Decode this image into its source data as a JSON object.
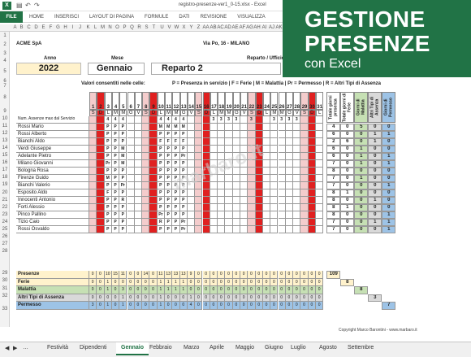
{
  "window": {
    "doc_title": "registro-presenze-ver1_0-15.xlsx - Excel"
  },
  "ribbon": {
    "file": "FILE",
    "tabs": [
      "HOME",
      "INSERISCI",
      "LAYOUT DI PAGINA",
      "FORMULE",
      "DATI",
      "REVISIONE",
      "VISUALIZZA"
    ]
  },
  "banner": {
    "line1": "GESTIONE",
    "line2": "PRESENZE",
    "line3": "con Excel"
  },
  "columns": [
    "A",
    "B",
    "C",
    "D",
    "E",
    "F",
    "G",
    "H",
    "I",
    "J",
    "K",
    "L",
    "M",
    "N",
    "O",
    "P",
    "Q",
    "R",
    "S",
    "T",
    "U",
    "V",
    "W",
    "X",
    "Y",
    "Z",
    "AA",
    "AB",
    "AC",
    "AD",
    "AE",
    "AF",
    "AG",
    "AH",
    "AI",
    "AJ",
    "AK",
    "AL",
    "AM",
    "AN",
    "AO"
  ],
  "header": {
    "company": "ACME SpA",
    "address": "Via Po, 16 - MILANO",
    "anno_label": "Anno",
    "anno": "2022",
    "mese_label": "Mese",
    "mese": "Gennaio",
    "reparto_label": "Reparto / Ufficio",
    "reparto": "Reparto 2",
    "legend": "Valori consentiti nelle celle:",
    "legend_values": "P = Presenza in servizio | F = Ferie | M = Malattia | Pr = Permesso | R = Altri Tipi di Assenza"
  },
  "grid": {
    "days": [
      1,
      2,
      3,
      4,
      5,
      6,
      7,
      8,
      9,
      10,
      11,
      12,
      13,
      14,
      15,
      16,
      17,
      18,
      19,
      20,
      21,
      22,
      23,
      24,
      25,
      26,
      27,
      28,
      29,
      30,
      31
    ],
    "weekdays": [
      "S",
      "D",
      "L",
      "M",
      "M",
      "G",
      "V",
      "S",
      "D",
      "L",
      "M",
      "M",
      "G",
      "V",
      "S",
      "D",
      "L",
      "M",
      "M",
      "G",
      "V",
      "S",
      "D",
      "L",
      "M",
      "M",
      "G",
      "V",
      "S",
      "D",
      "L"
    ],
    "max_row_label": "Num. Assenze max dal Servizio",
    "max_row": [
      "",
      "",
      "4",
      "4",
      "4",
      "",
      "",
      "",
      "",
      "4",
      "4",
      "4",
      "4",
      "",
      "",
      "",
      "3",
      "3",
      "3",
      "3",
      "",
      "3",
      "",
      "",
      "3",
      "3",
      "3",
      "3",
      "",
      "",
      ""
    ],
    "summary_headers": [
      "Totale giorni presenza",
      "Totale giorni di Ferie",
      "Giorni di Malattia",
      "Altri Tipi di Assenza",
      "Giorni di Permesso"
    ],
    "employees": [
      {
        "name": "Rossi Mario",
        "cells": [
          "",
          "",
          "P",
          "P",
          "P",
          "",
          "",
          "",
          "",
          "M",
          "M",
          "M",
          "M",
          "",
          "",
          "",
          "",
          "",
          "",
          "",
          "",
          "",
          "",
          "",
          "",
          "",
          "",
          "",
          "",
          "",
          ""
        ],
        "totals": [
          "4",
          "0",
          "5",
          "0",
          "0"
        ]
      },
      {
        "name": "Rossi Alberto",
        "cells": [
          "",
          "",
          "P",
          "P",
          "P",
          "",
          "",
          "",
          "",
          "P",
          "P",
          "P",
          "P",
          "",
          "",
          "",
          "",
          "",
          "",
          "",
          "",
          "",
          "",
          "",
          "",
          "",
          "",
          "",
          "",
          "",
          ""
        ],
        "totals": [
          "6",
          "0",
          "0",
          "1",
          "1"
        ]
      },
      {
        "name": "Bianchi Aldo",
        "cells": [
          "",
          "",
          "P",
          "P",
          "P",
          "",
          "",
          "",
          "",
          "F",
          "F",
          "F",
          "F",
          "",
          "",
          "",
          "",
          "",
          "",
          "",
          "",
          "",
          "",
          "",
          "",
          "",
          "",
          "",
          "",
          "",
          ""
        ],
        "totals": [
          "2",
          "6",
          "0",
          "1",
          "0"
        ]
      },
      {
        "name": "Verdi Giuseppe",
        "cells": [
          "",
          "",
          "P",
          "P",
          "M",
          "",
          "",
          "",
          "",
          "P",
          "P",
          "P",
          "P",
          "",
          "",
          "",
          "",
          "",
          "",
          "",
          "",
          "",
          "",
          "",
          "",
          "",
          "",
          "",
          "",
          "",
          ""
        ],
        "totals": [
          "6",
          "0",
          "1",
          "0",
          "0"
        ]
      },
      {
        "name": "Adelante Pietro",
        "cells": [
          "",
          "",
          "P",
          "P",
          "M",
          "",
          "",
          "",
          "",
          "P",
          "P",
          "P",
          "Pr",
          "",
          "",
          "",
          "",
          "",
          "",
          "",
          "",
          "",
          "",
          "",
          "",
          "",
          "",
          "",
          "",
          "",
          ""
        ],
        "totals": [
          "6",
          "0",
          "1",
          "0",
          "1"
        ]
      },
      {
        "name": "Milano Giovanni",
        "cells": [
          "",
          "",
          "Pr",
          "P",
          "M",
          "",
          "",
          "",
          "",
          "P",
          "P",
          "P",
          "P",
          "",
          "",
          "",
          "",
          "",
          "",
          "",
          "",
          "",
          "",
          "",
          "",
          "",
          "",
          "",
          "",
          "",
          ""
        ],
        "totals": [
          "7",
          "0",
          "1",
          "0",
          "1"
        ]
      },
      {
        "name": "Bologna Rosa",
        "cells": [
          "",
          "",
          "P",
          "P",
          "P",
          "",
          "",
          "",
          "",
          "P",
          "P",
          "P",
          "P",
          "",
          "",
          "",
          "",
          "",
          "",
          "",
          "",
          "",
          "",
          "",
          "",
          "",
          "",
          "",
          "",
          "",
          ""
        ],
        "totals": [
          "8",
          "0",
          "0",
          "0",
          "0"
        ]
      },
      {
        "name": "Firenze Guido",
        "cells": [
          "",
          "",
          "M",
          "P",
          "P",
          "",
          "",
          "",
          "",
          "P",
          "P",
          "P",
          "P",
          "",
          "",
          "",
          "",
          "",
          "",
          "",
          "",
          "",
          "",
          "",
          "",
          "",
          "",
          "",
          "",
          "",
          ""
        ],
        "totals": [
          "7",
          "0",
          "1",
          "0",
          "0"
        ]
      },
      {
        "name": "Bianchi Valerio",
        "cells": [
          "",
          "",
          "P",
          "P",
          "Pr",
          "",
          "",
          "",
          "",
          "P",
          "P",
          "P",
          "P",
          "",
          "",
          "",
          "",
          "",
          "",
          "",
          "",
          "",
          "",
          "",
          "",
          "",
          "",
          "",
          "",
          "",
          ""
        ],
        "totals": [
          "7",
          "0",
          "0",
          "0",
          "1"
        ]
      },
      {
        "name": "Esposito Aldo",
        "cells": [
          "",
          "",
          "F",
          "P",
          "P",
          "",
          "",
          "",
          "",
          "P",
          "P",
          "P",
          "P",
          "",
          "",
          "",
          "",
          "",
          "",
          "",
          "",
          "",
          "",
          "",
          "",
          "",
          "",
          "",
          "",
          "",
          ""
        ],
        "totals": [
          "8",
          "1",
          "0",
          "0",
          "0"
        ]
      },
      {
        "name": "Innocenti Antonio",
        "cells": [
          "",
          "",
          "P",
          "P",
          "R",
          "",
          "",
          "",
          "",
          "P",
          "P",
          "P",
          "P",
          "",
          "",
          "",
          "",
          "",
          "",
          "",
          "",
          "",
          "",
          "",
          "",
          "",
          "",
          "",
          "",
          "",
          ""
        ],
        "totals": [
          "8",
          "0",
          "0",
          "1",
          "0"
        ]
      },
      {
        "name": "Forti Alessio",
        "cells": [
          "",
          "",
          "P",
          "P",
          "P",
          "",
          "",
          "",
          "",
          "P",
          "P",
          "P",
          "P",
          "",
          "",
          "",
          "",
          "",
          "",
          "",
          "",
          "",
          "",
          "",
          "",
          "",
          "",
          "",
          "",
          "",
          ""
        ],
        "totals": [
          "8",
          "1",
          "0",
          "0",
          "0"
        ]
      },
      {
        "name": "Pinco Pallino",
        "cells": [
          "",
          "",
          "P",
          "P",
          "P",
          "",
          "",
          "",
          "",
          "Pr",
          "P",
          "P",
          "P",
          "",
          "",
          "",
          "",
          "",
          "",
          "",
          "",
          "",
          "",
          "",
          "",
          "",
          "",
          "",
          "",
          "",
          ""
        ],
        "totals": [
          "8",
          "0",
          "0",
          "0",
          "1"
        ]
      },
      {
        "name": "Tizio Caio",
        "cells": [
          "",
          "",
          "P",
          "P",
          "P",
          "",
          "",
          "",
          "",
          "R",
          "P",
          "P",
          "Pr",
          "",
          "",
          "",
          "",
          "",
          "",
          "",
          "",
          "",
          "",
          "",
          "",
          "",
          "",
          "",
          "",
          "",
          ""
        ],
        "totals": [
          "7",
          "0",
          "0",
          "1",
          "1"
        ]
      },
      {
        "name": "Rossi Osvaldo",
        "cells": [
          "",
          "",
          "P",
          "P",
          "P",
          "",
          "",
          "",
          "",
          "P",
          "P",
          "P",
          "Pr",
          "",
          "",
          "",
          "",
          "",
          "",
          "",
          "",
          "",
          "",
          "",
          "",
          "",
          "",
          "",
          "",
          "",
          ""
        ],
        "totals": [
          "7",
          "0",
          "0",
          "0",
          "1"
        ]
      }
    ],
    "summary_rows": [
      {
        "name": "Presenze",
        "values": [
          "0",
          "0",
          "10",
          "15",
          "11",
          "0",
          "0",
          "14",
          "0",
          "11",
          "13",
          "13",
          "13",
          "9",
          "0",
          "0",
          "0",
          "0",
          "0",
          "0",
          "0",
          "0",
          "0",
          "0",
          "0",
          "0",
          "0",
          "0",
          "0",
          "0",
          "0"
        ],
        "total": "109",
        "bg": "#fff2cc"
      },
      {
        "name": "Ferie",
        "values": [
          "0",
          "0",
          "1",
          "0",
          "0",
          "0",
          "0",
          "0",
          "0",
          "1",
          "1",
          "1",
          "1",
          "0",
          "0",
          "0",
          "0",
          "0",
          "0",
          "0",
          "0",
          "0",
          "0",
          "0",
          "0",
          "0",
          "0",
          "0",
          "0",
          "0",
          "0"
        ],
        "total": "8",
        "bg": "#fff2cc"
      },
      {
        "name": "Malattia",
        "values": [
          "0",
          "0",
          "1",
          "0",
          "3",
          "0",
          "0",
          "0",
          "0",
          "1",
          "1",
          "1",
          "1",
          "0",
          "0",
          "0",
          "0",
          "0",
          "0",
          "0",
          "0",
          "0",
          "0",
          "0",
          "0",
          "0",
          "0",
          "0",
          "0",
          "0",
          "0"
        ],
        "total": "8",
        "bg": "#c6e0b4"
      },
      {
        "name": "Altri Tipi di Assenza",
        "values": [
          "0",
          "0",
          "0",
          "0",
          "1",
          "0",
          "0",
          "0",
          "0",
          "1",
          "0",
          "0",
          "0",
          "1",
          "0",
          "0",
          "0",
          "0",
          "0",
          "0",
          "0",
          "0",
          "0",
          "0",
          "0",
          "0",
          "0",
          "0",
          "0",
          "0",
          "0"
        ],
        "total": "3",
        "bg": "#d9d9d9"
      },
      {
        "name": "Permesso",
        "values": [
          "3",
          "0",
          "1",
          "0",
          "1",
          "0",
          "0",
          "0",
          "0",
          "1",
          "0",
          "0",
          "0",
          "4",
          "0",
          "0",
          "0",
          "0",
          "0",
          "0",
          "0",
          "0",
          "0",
          "0",
          "0",
          "0",
          "0",
          "0",
          "0",
          "0",
          "0"
        ],
        "total": "7",
        "bg": "#9dc3e6"
      }
    ],
    "copyright": "Copyright Marco Barontini - www.marbaro.it"
  },
  "watermark": "marbaro.it",
  "tabs": {
    "active": "Gennaio",
    "list": [
      "Festività",
      "Dipendenti",
      "Gennaio",
      "Febbraio",
      "Marzo",
      "Aprile",
      "Maggio",
      "Giugno",
      "Luglio",
      "Agosto",
      "Settembre"
    ]
  },
  "colors": {
    "excel_green": "#217346",
    "weekend": "#f4cccc",
    "holiday": "#e02020"
  }
}
